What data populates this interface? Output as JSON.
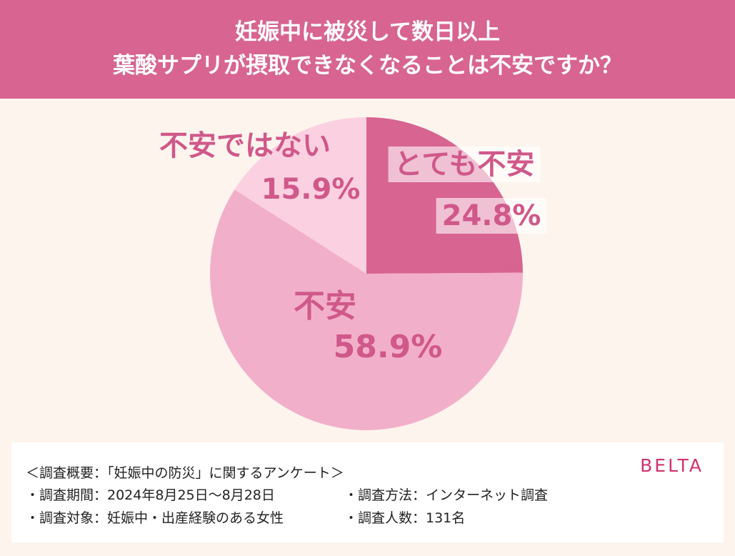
{
  "header": {
    "title_line1": "妊娠中に被災して数日以上",
    "title_line2": "葉酸サプリが摂取できなくなることは不安ですか？"
  },
  "colors": {
    "header_bg": "#d86491",
    "background": "#fdf4ee",
    "slice_very_anxious": "#d86491",
    "slice_anxious": "#f2afc9",
    "slice_not_anxious": "#fbd0e0",
    "label_text": "#d0588a",
    "logo": "#d0336f"
  },
  "chart_data": {
    "type": "pie",
    "slices": [
      {
        "label": "とても不安",
        "value": 24.8,
        "value_label": "24.8%",
        "color": "#d86491"
      },
      {
        "label": "不安",
        "value": 58.9,
        "value_label": "58.9%",
        "color": "#f2afc9"
      },
      {
        "label": "不安ではない",
        "value": 15.9,
        "value_label": "15.9%",
        "color": "#fbd0e0"
      }
    ],
    "start": "top",
    "direction": "clockwise"
  },
  "footer": {
    "survey_title": "＜調査概要：「妊娠中の防災」に関するアンケート＞",
    "period": "・調査期間：2024年8月25日〜8月28日",
    "method": "・調査方法：インターネット調査",
    "target": "・調査対象：妊娠中・出産経験のある女性",
    "count": "・調査人数：131名",
    "logo": "BELTA"
  }
}
